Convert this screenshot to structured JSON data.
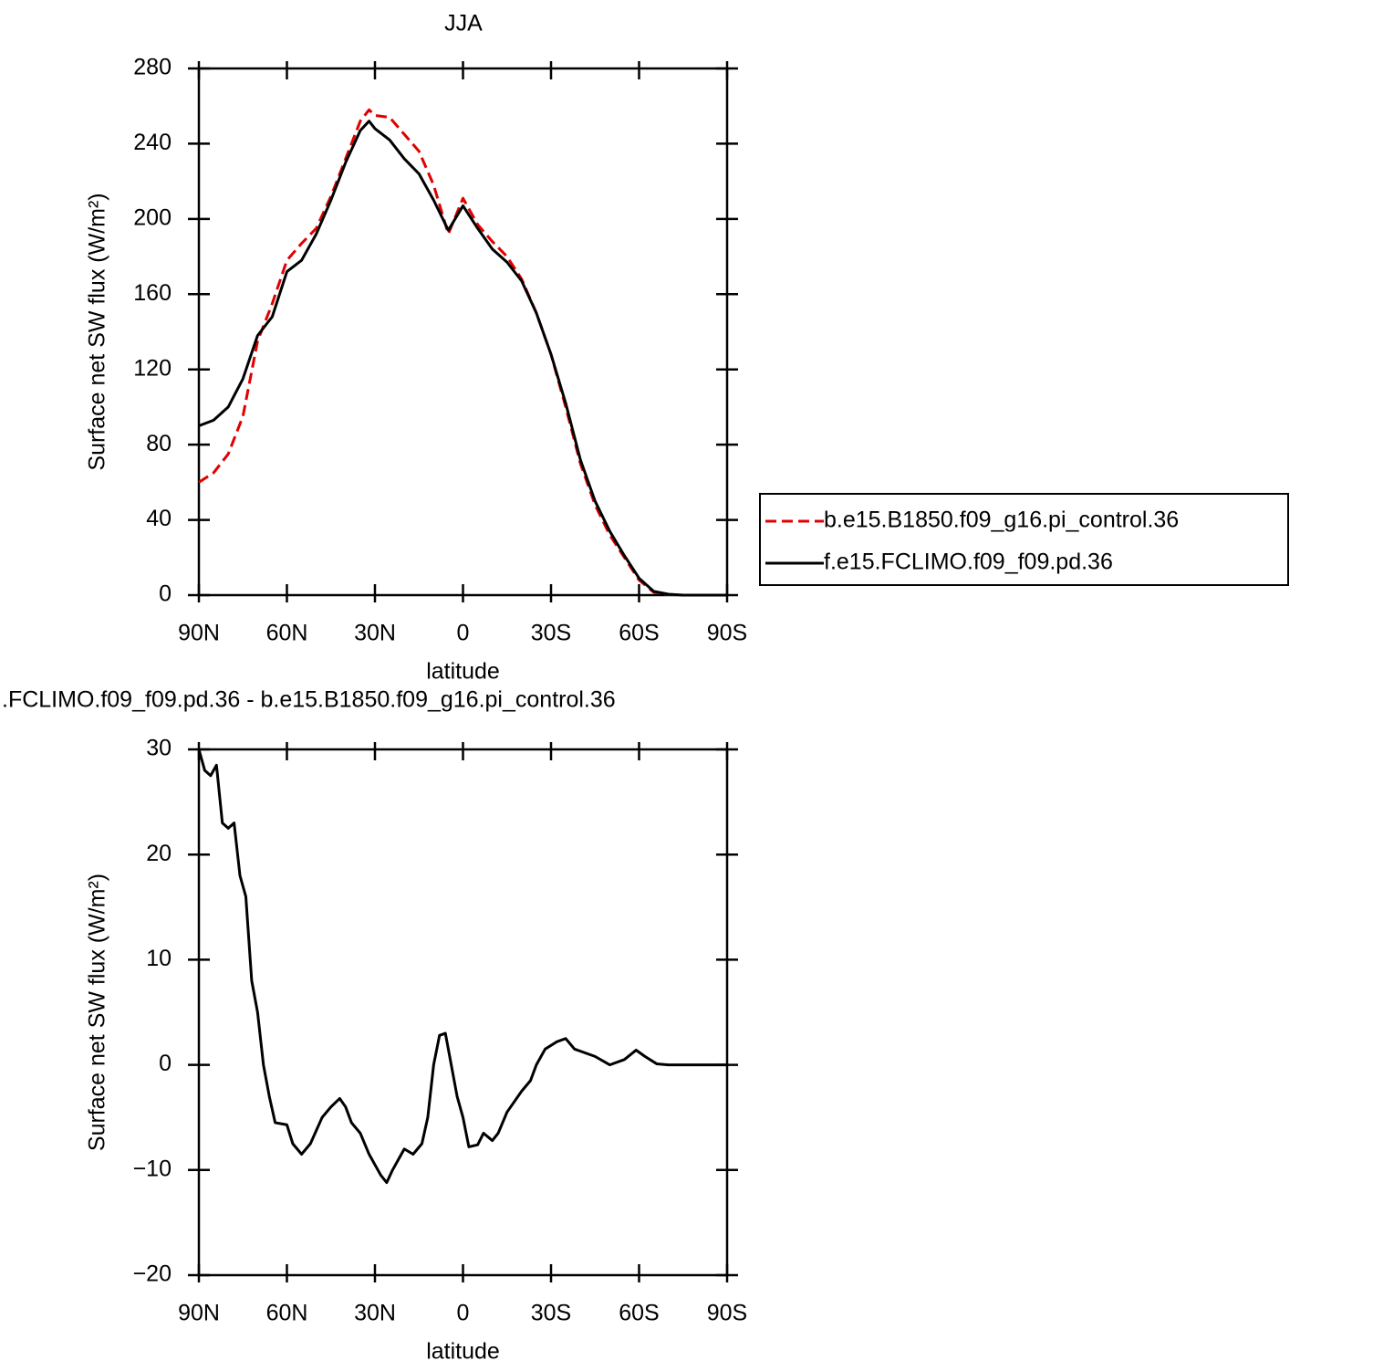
{
  "chart_data": [
    {
      "type": "line",
      "title": "JJA",
      "xlabel": "latitude",
      "ylabel": "Surface net SW flux (W/m²)",
      "x": [
        90,
        85,
        80,
        75,
        70,
        65,
        60,
        55,
        50,
        45,
        40,
        35,
        32,
        30,
        25,
        20,
        15,
        10,
        5,
        0,
        -5,
        -10,
        -15,
        -20,
        -25,
        -30,
        -35,
        -40,
        -45,
        -50,
        -55,
        -60,
        -65,
        -70,
        -75,
        -80,
        -85,
        -90
      ],
      "series": [
        {
          "name": "b.e15.B1850.f09_g16.pi_control.36",
          "color": "#e00000",
          "line_style": "dashed",
          "values": [
            60,
            65,
            75,
            95,
            135,
            155,
            178,
            187,
            195,
            212,
            232,
            252,
            258,
            255,
            254,
            245,
            236,
            218,
            192,
            211,
            197,
            188,
            180,
            168,
            150,
            128,
            100,
            70,
            48,
            32,
            20,
            8,
            1.5,
            0.3,
            0,
            0,
            0,
            0
          ]
        },
        {
          "name": "f.e15.FCLIMO.f09_f09.pd.36",
          "color": "#000000",
          "line_style": "solid",
          "values": [
            90,
            93,
            100,
            115,
            138,
            148,
            172,
            178,
            192,
            210,
            230,
            247,
            252,
            248,
            242,
            232,
            224,
            210,
            194,
            207,
            195,
            184,
            177,
            167,
            150,
            128,
            102,
            72,
            50,
            34,
            21,
            9,
            2,
            0.5,
            0,
            0,
            0,
            0
          ]
        }
      ],
      "xlim": [
        90,
        -90
      ],
      "xticks": [
        {
          "value": 90,
          "label": "90N"
        },
        {
          "value": 60,
          "label": "60N"
        },
        {
          "value": 30,
          "label": "30N"
        },
        0,
        {
          "value": -30,
          "label": "30S"
        },
        {
          "value": -60,
          "label": "60S"
        },
        {
          "value": -90,
          "label": "90S"
        }
      ],
      "ylim": [
        0,
        280
      ],
      "yticks": [
        0,
        40,
        80,
        120,
        160,
        200,
        240,
        280
      ],
      "legend": "right"
    },
    {
      "type": "line",
      "title": ".FCLIMO.f09_f09.pd.36 - b.e15.B1850.f09_g16.pi_control.36",
      "xlabel": "latitude",
      "ylabel": "Surface net SW flux (W/m²)",
      "x": [
        90,
        88,
        86,
        84,
        82,
        80,
        78,
        76,
        74,
        72,
        70,
        68,
        66,
        64,
        60,
        58,
        55,
        52,
        48,
        45,
        42,
        40,
        38,
        35,
        32,
        28,
        26,
        24,
        20,
        17,
        14,
        12,
        10,
        8,
        6,
        4,
        2,
        0,
        -2,
        -5,
        -7,
        -10,
        -12,
        -15,
        -20,
        -23,
        -25,
        -28,
        -32,
        -35,
        -38,
        -45,
        -50,
        -55,
        -59,
        -62,
        -66,
        -70,
        -80,
        -90
      ],
      "color": "#000000",
      "values": [
        30,
        28,
        27.5,
        28.5,
        23,
        22.5,
        23,
        18,
        16,
        8,
        5,
        0,
        -3,
        -5.5,
        -5.7,
        -7.5,
        -8.5,
        -7.5,
        -5,
        -4,
        -3.2,
        -4,
        -5.5,
        -6.5,
        -8.5,
        -10.5,
        -11.2,
        -10,
        -8,
        -8.5,
        -7.5,
        -5,
        0,
        2.8,
        3,
        0,
        -3,
        -5,
        -7.8,
        -7.6,
        -6.5,
        -7.2,
        -6.5,
        -4.5,
        -2.5,
        -1.5,
        0,
        1.5,
        2.2,
        2.5,
        1.5,
        0.8,
        0,
        0.5,
        1.4,
        0.8,
        0.1,
        0,
        0,
        0
      ],
      "xlim": [
        90,
        -90
      ],
      "xticks": [
        {
          "value": 90,
          "label": "90N"
        },
        {
          "value": 60,
          "label": "60N"
        },
        {
          "value": 30,
          "label": "30N"
        },
        0,
        {
          "value": -30,
          "label": "30S"
        },
        {
          "value": -60,
          "label": "60S"
        },
        {
          "value": -90,
          "label": "90S"
        }
      ],
      "ylim": [
        -20,
        30
      ],
      "yticks": [
        {
          "value": -20,
          "label": "−20"
        },
        {
          "value": -10,
          "label": "−10"
        },
        0,
        10,
        20,
        30
      ]
    }
  ]
}
